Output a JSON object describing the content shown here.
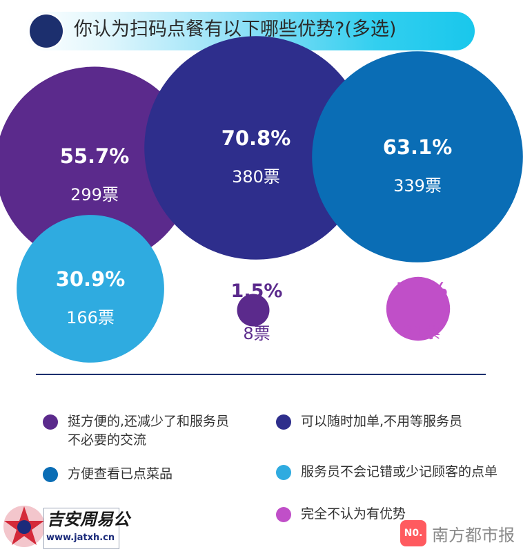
{
  "title": "你认为扫码点餐有以下哪些优势?(多选)",
  "chart_data": {
    "type": "bubble",
    "unit_votes": "票",
    "series": [
      {
        "name": "挺方便的,还减少了和服务员不必要的交流",
        "percent": "55.7%",
        "votes": 299,
        "color": "#5b2a8c"
      },
      {
        "name": "可以随时加单,不用等服务员",
        "percent": "70.8%",
        "votes": 380,
        "color": "#2e2e8c"
      },
      {
        "name": "方便查看已点菜品",
        "percent": "63.1%",
        "votes": 339,
        "color": "#0a6db5"
      },
      {
        "name": "服务员不会记错或少记顾客的点单",
        "percent": "30.9%",
        "votes": 166,
        "color": "#2fabe0"
      },
      {
        "name": "",
        "percent": "1.5%",
        "votes": 8,
        "color": "#5b2a8c"
      },
      {
        "name": "完全不认为有优势",
        "percent": "5.8%",
        "votes": 31,
        "color": "#c04fc8"
      }
    ]
  },
  "legend": [
    {
      "label": "挺方便的,还减少了和服务员\n不必要的交流",
      "color": "#5b2a8c"
    },
    {
      "label": "可以随时加单,不用等服务员",
      "color": "#2e2e8c"
    },
    {
      "label": "方便查看已点菜品",
      "color": "#0a6db5"
    },
    {
      "label": "服务员不会记错或少记顾客的点单",
      "color": "#2fabe0"
    },
    {
      "label": "完全不认为有优势",
      "color": "#c04fc8"
    }
  ],
  "watermarks": {
    "left_name": "吉安周易公",
    "left_url": "www.jatxh.cn",
    "right_logo": "N0.",
    "right_name": "南方都市报"
  }
}
